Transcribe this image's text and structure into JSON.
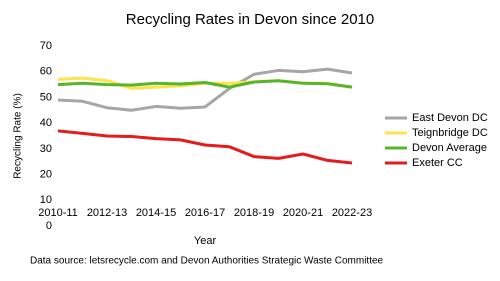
{
  "chart_data": {
    "type": "line",
    "title": "Recycling Rates in Devon since 2010",
    "x_label": "Year",
    "y_label": "Recycling Rate (%)",
    "source": "Data source: letsrecycle.com and Devon Authorities Strategic Waste Committee",
    "categories": [
      "2010-11",
      null,
      "2012-13",
      null,
      "2014-15",
      null,
      "2016-17",
      null,
      "2018-19",
      null,
      "2020-21",
      null,
      "2022-23"
    ],
    "series": [
      {
        "name": "East Devon DC",
        "color": "#a6a6a6",
        "values": [
          49,
          48.5,
          46,
          45,
          46.5,
          45.8,
          46.3,
          53.5,
          59,
          60.5,
          60,
          61,
          59.5
        ]
      },
      {
        "name": "Teignbridge DC",
        "color": "#ffe34d",
        "values": [
          57,
          57.5,
          56.5,
          53.5,
          54,
          54.5,
          55.5,
          55.5,
          56,
          56.5,
          55.5,
          55.5,
          54
        ]
      },
      {
        "name": "Devon Average",
        "color": "#57b52c",
        "values": [
          55,
          55.5,
          55,
          54.8,
          55.5,
          55.2,
          55.8,
          54,
          56,
          56.5,
          55.5,
          55.3,
          54
        ]
      },
      {
        "name": "Exeter CC",
        "color": "#e41c1c",
        "values": [
          37,
          36,
          35,
          34.8,
          34,
          33.5,
          31.5,
          30.8,
          27,
          26.3,
          28,
          25.5,
          24.5
        ]
      }
    ],
    "ylim": [
      0,
      70
    ],
    "yticks": [
      0,
      10,
      20,
      30,
      40,
      50,
      60,
      70
    ],
    "legend": "right"
  }
}
